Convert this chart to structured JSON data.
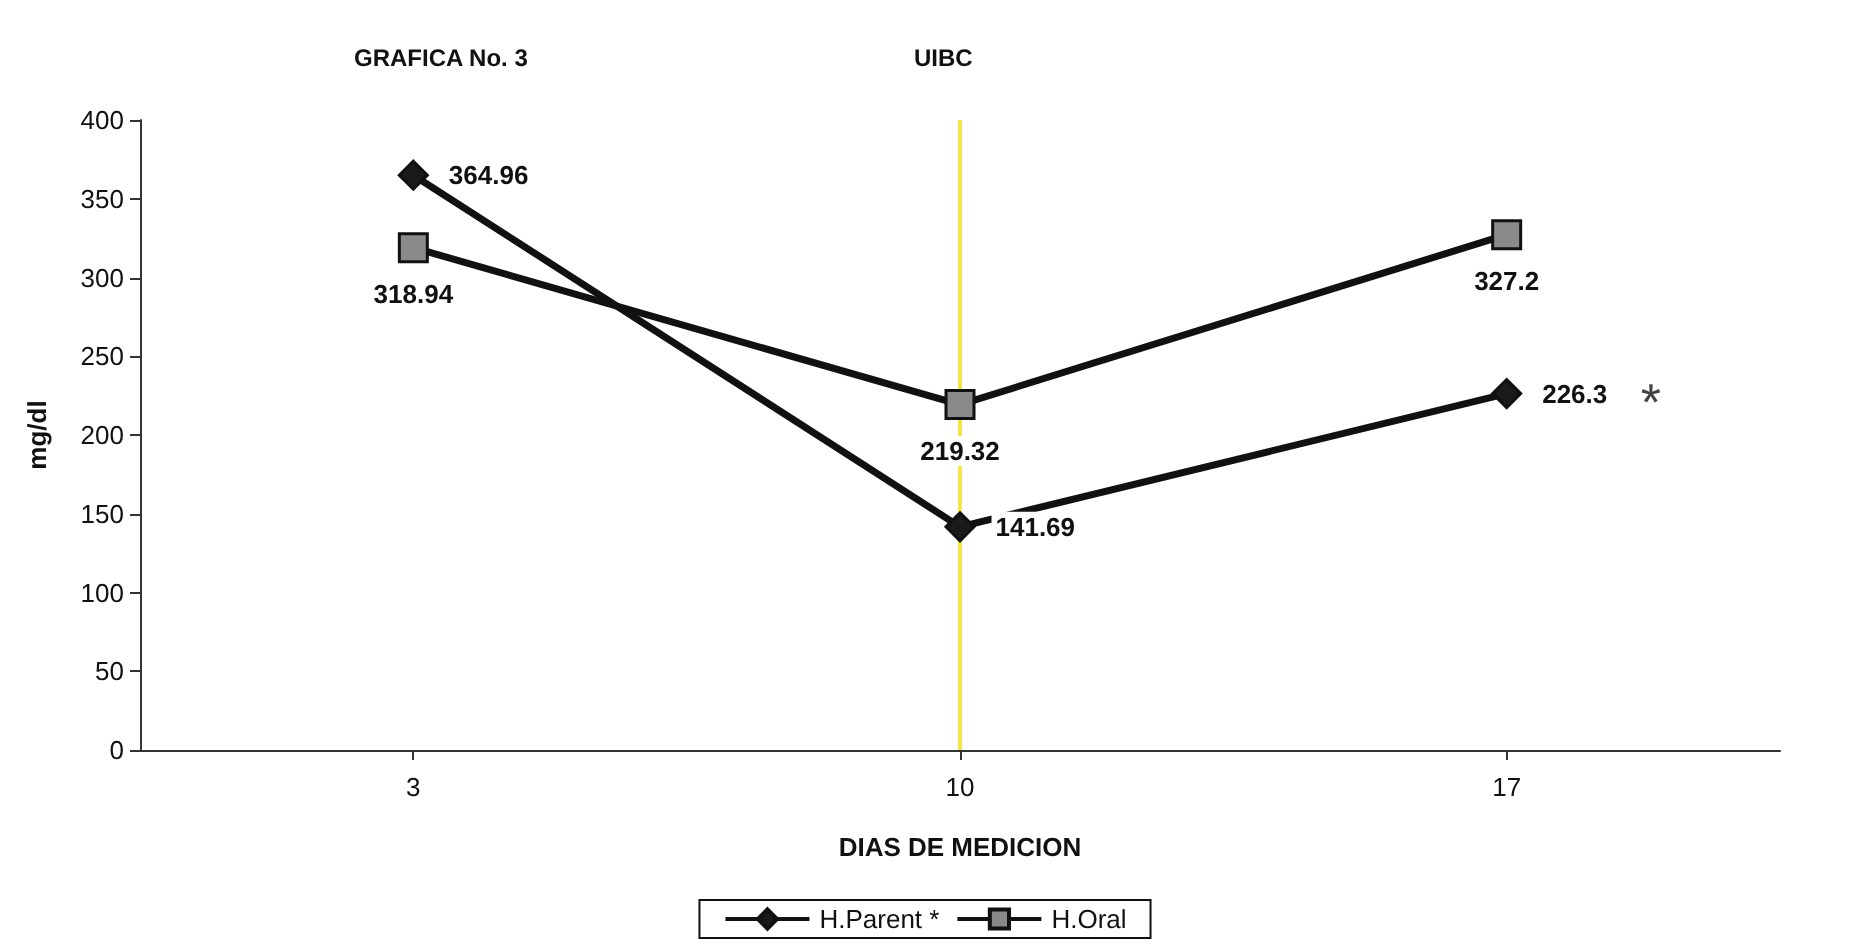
{
  "chart_data": {
    "type": "line",
    "title": "GRAFICA No. 3",
    "subtitle": "UIBC",
    "xlabel": "DIAS DE MEDICION",
    "ylabel": "mg/dl",
    "categories": [
      "3",
      "10",
      "17"
    ],
    "series": [
      {
        "name": "H.Parent *",
        "color": "#1a1a1a",
        "marker": "diamond",
        "values": [
          364.96,
          141.69,
          226.3
        ]
      },
      {
        "name": "H.Oral",
        "color": "#8a8a8a",
        "marker": "square",
        "values": [
          318.94,
          219.32,
          327.2
        ]
      }
    ],
    "ylim": [
      0,
      400
    ],
    "yticks": [
      0,
      50,
      100,
      150,
      200,
      250,
      300,
      350,
      400
    ],
    "grid": false,
    "legend": "bottom",
    "data_labels": true,
    "line_style": "solid",
    "ref_lines": [
      {
        "axis": "x",
        "value": "10",
        "color": "#f2e64a"
      }
    ],
    "annotations": [
      {
        "text": "*",
        "x": "17",
        "y": 226.3
      }
    ]
  }
}
